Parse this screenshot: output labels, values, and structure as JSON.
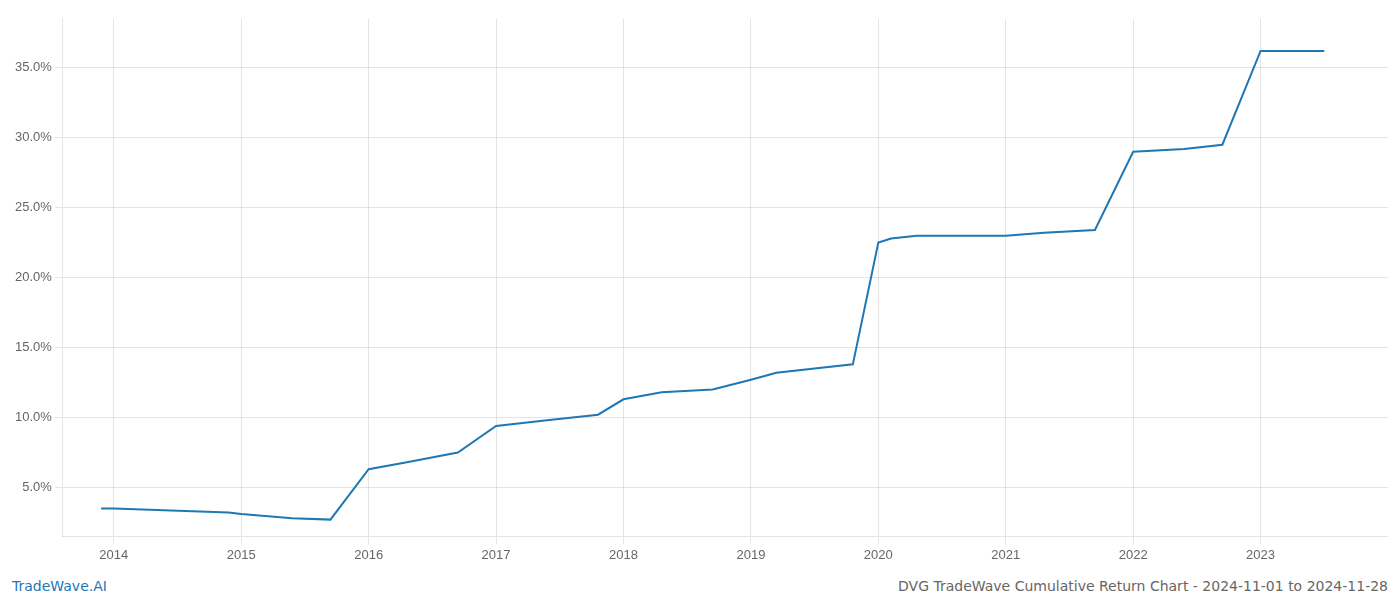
{
  "chart_data": {
    "type": "line",
    "title": "DVG TradeWave Cumulative Return Chart - 2024-11-01 to 2024-11-28",
    "annotations": [
      "TradeWave.AI"
    ],
    "x": [
      2013.9,
      2014.0,
      2014.9,
      2015.0,
      2015.4,
      2015.7,
      2016.0,
      2016.3,
      2016.7,
      2017.0,
      2017.4,
      2017.8,
      2018.0,
      2018.3,
      2018.7,
      2019.0,
      2019.2,
      2019.5,
      2019.8,
      2020.0,
      2020.1,
      2020.3,
      2020.6,
      2021.0,
      2021.3,
      2021.7,
      2022.0,
      2022.4,
      2022.7,
      2023.0,
      2023.5
    ],
    "values": [
      3.5,
      3.5,
      3.2,
      3.1,
      2.8,
      2.7,
      6.3,
      6.8,
      7.5,
      9.4,
      9.8,
      10.2,
      11.3,
      11.8,
      12.0,
      12.7,
      13.2,
      13.5,
      13.8,
      22.5,
      22.8,
      23.0,
      23.0,
      23.0,
      23.2,
      23.4,
      29.0,
      29.2,
      29.5,
      36.2,
      36.2
    ],
    "color": "#1f77b4",
    "xlim": [
      2013.6,
      2024.0
    ],
    "xticks": [
      2014,
      2015,
      2016,
      2017,
      2018,
      2019,
      2020,
      2021,
      2022,
      2023
    ],
    "ylim": [
      1.5,
      38.5
    ],
    "yticks": [
      {
        "value": 5.0,
        "label": "5.0%"
      },
      {
        "value": 10.0,
        "label": "10.0%"
      },
      {
        "value": 15.0,
        "label": "15.0%"
      },
      {
        "value": 20.0,
        "label": "20.0%"
      },
      {
        "value": 25.0,
        "label": "25.0%"
      },
      {
        "value": 30.0,
        "label": "30.0%"
      },
      {
        "value": 35.0,
        "label": "35.0%"
      }
    ],
    "grid": true
  }
}
